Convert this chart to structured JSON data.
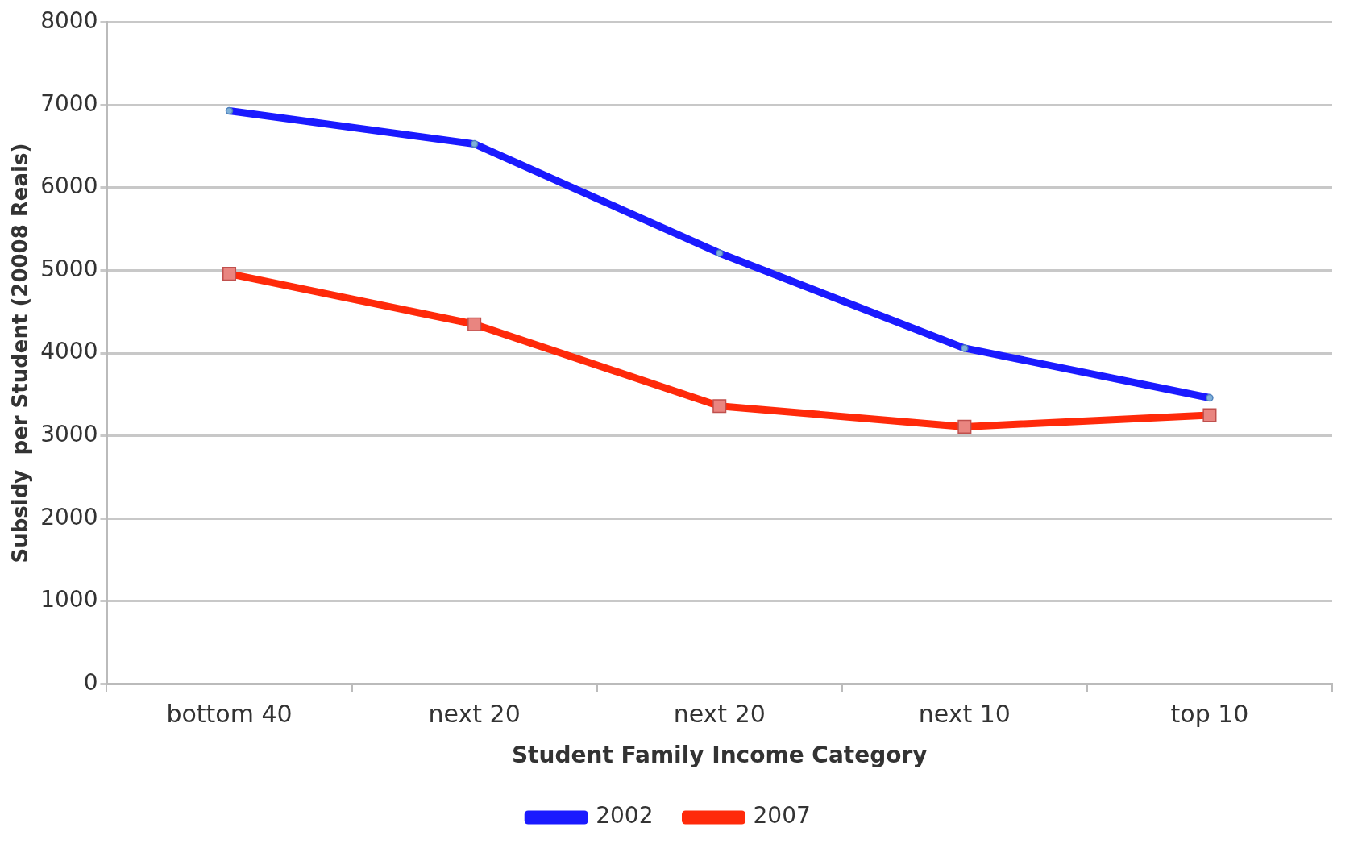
{
  "chart_data": {
    "type": "line",
    "xlabel": "Student Family Income Category",
    "ylabel": "Subsidy  per Student (20008 Reais)",
    "categories": [
      "bottom 40",
      "next 20",
      "next 20",
      "next 10",
      "top 10"
    ],
    "series": [
      {
        "name": "2002",
        "color": "#1a1aff",
        "marker": "circle",
        "values": [
          6930,
          6530,
          5210,
          4060,
          3460
        ]
      },
      {
        "name": "2007",
        "color": "#ff2a0a",
        "marker": "square",
        "values": [
          4960,
          4350,
          3360,
          3110,
          3250
        ]
      }
    ],
    "ylim": [
      0,
      8000
    ],
    "yticks": [
      0,
      1000,
      2000,
      3000,
      4000,
      5000,
      6000,
      7000,
      8000
    ],
    "grid": "y",
    "legend": "bottom"
  }
}
